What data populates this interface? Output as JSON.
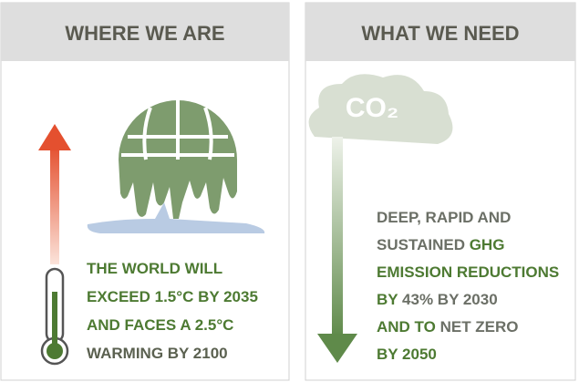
{
  "panels": [
    {
      "header": "WHERE WE ARE",
      "lines": [
        [
          {
            "text": "THE WORLD WILL",
            "color": "#4d7a32"
          }
        ],
        [
          {
            "text": "EXCEED 1.5°C BY 2035",
            "color": "#4d7a32"
          }
        ],
        [
          {
            "text": "AND FACES A 2.5°C",
            "color": "#4d7a32"
          }
        ],
        [
          {
            "text": "WARMING BY 2100",
            "color": "#5b6150"
          }
        ]
      ]
    },
    {
      "header": "WHAT WE NEED",
      "icon": "CO₂",
      "lines": [
        [
          {
            "text": "DEEP, RAPID AND",
            "color": "#6b6f66"
          }
        ],
        [
          {
            "text": "SUSTAINED ",
            "color": "#6b6f66"
          },
          {
            "text": "GHG",
            "color": "#4d7a32"
          }
        ],
        [
          {
            "text": "EMISSION REDUCTIONS",
            "color": "#4d7a32"
          }
        ],
        [
          {
            "text": "BY ",
            "color": "#4d7a32"
          },
          {
            "text": "43% BY 2030",
            "color": "#6b6f66"
          }
        ],
        [
          {
            "text": "AND TO ",
            "color": "#4d7a32"
          },
          {
            "text": "NET ZERO",
            "color": "#6b6f66"
          }
        ],
        [
          {
            "text": "BY 2050",
            "color": "#4d7a32"
          }
        ]
      ]
    }
  ]
}
